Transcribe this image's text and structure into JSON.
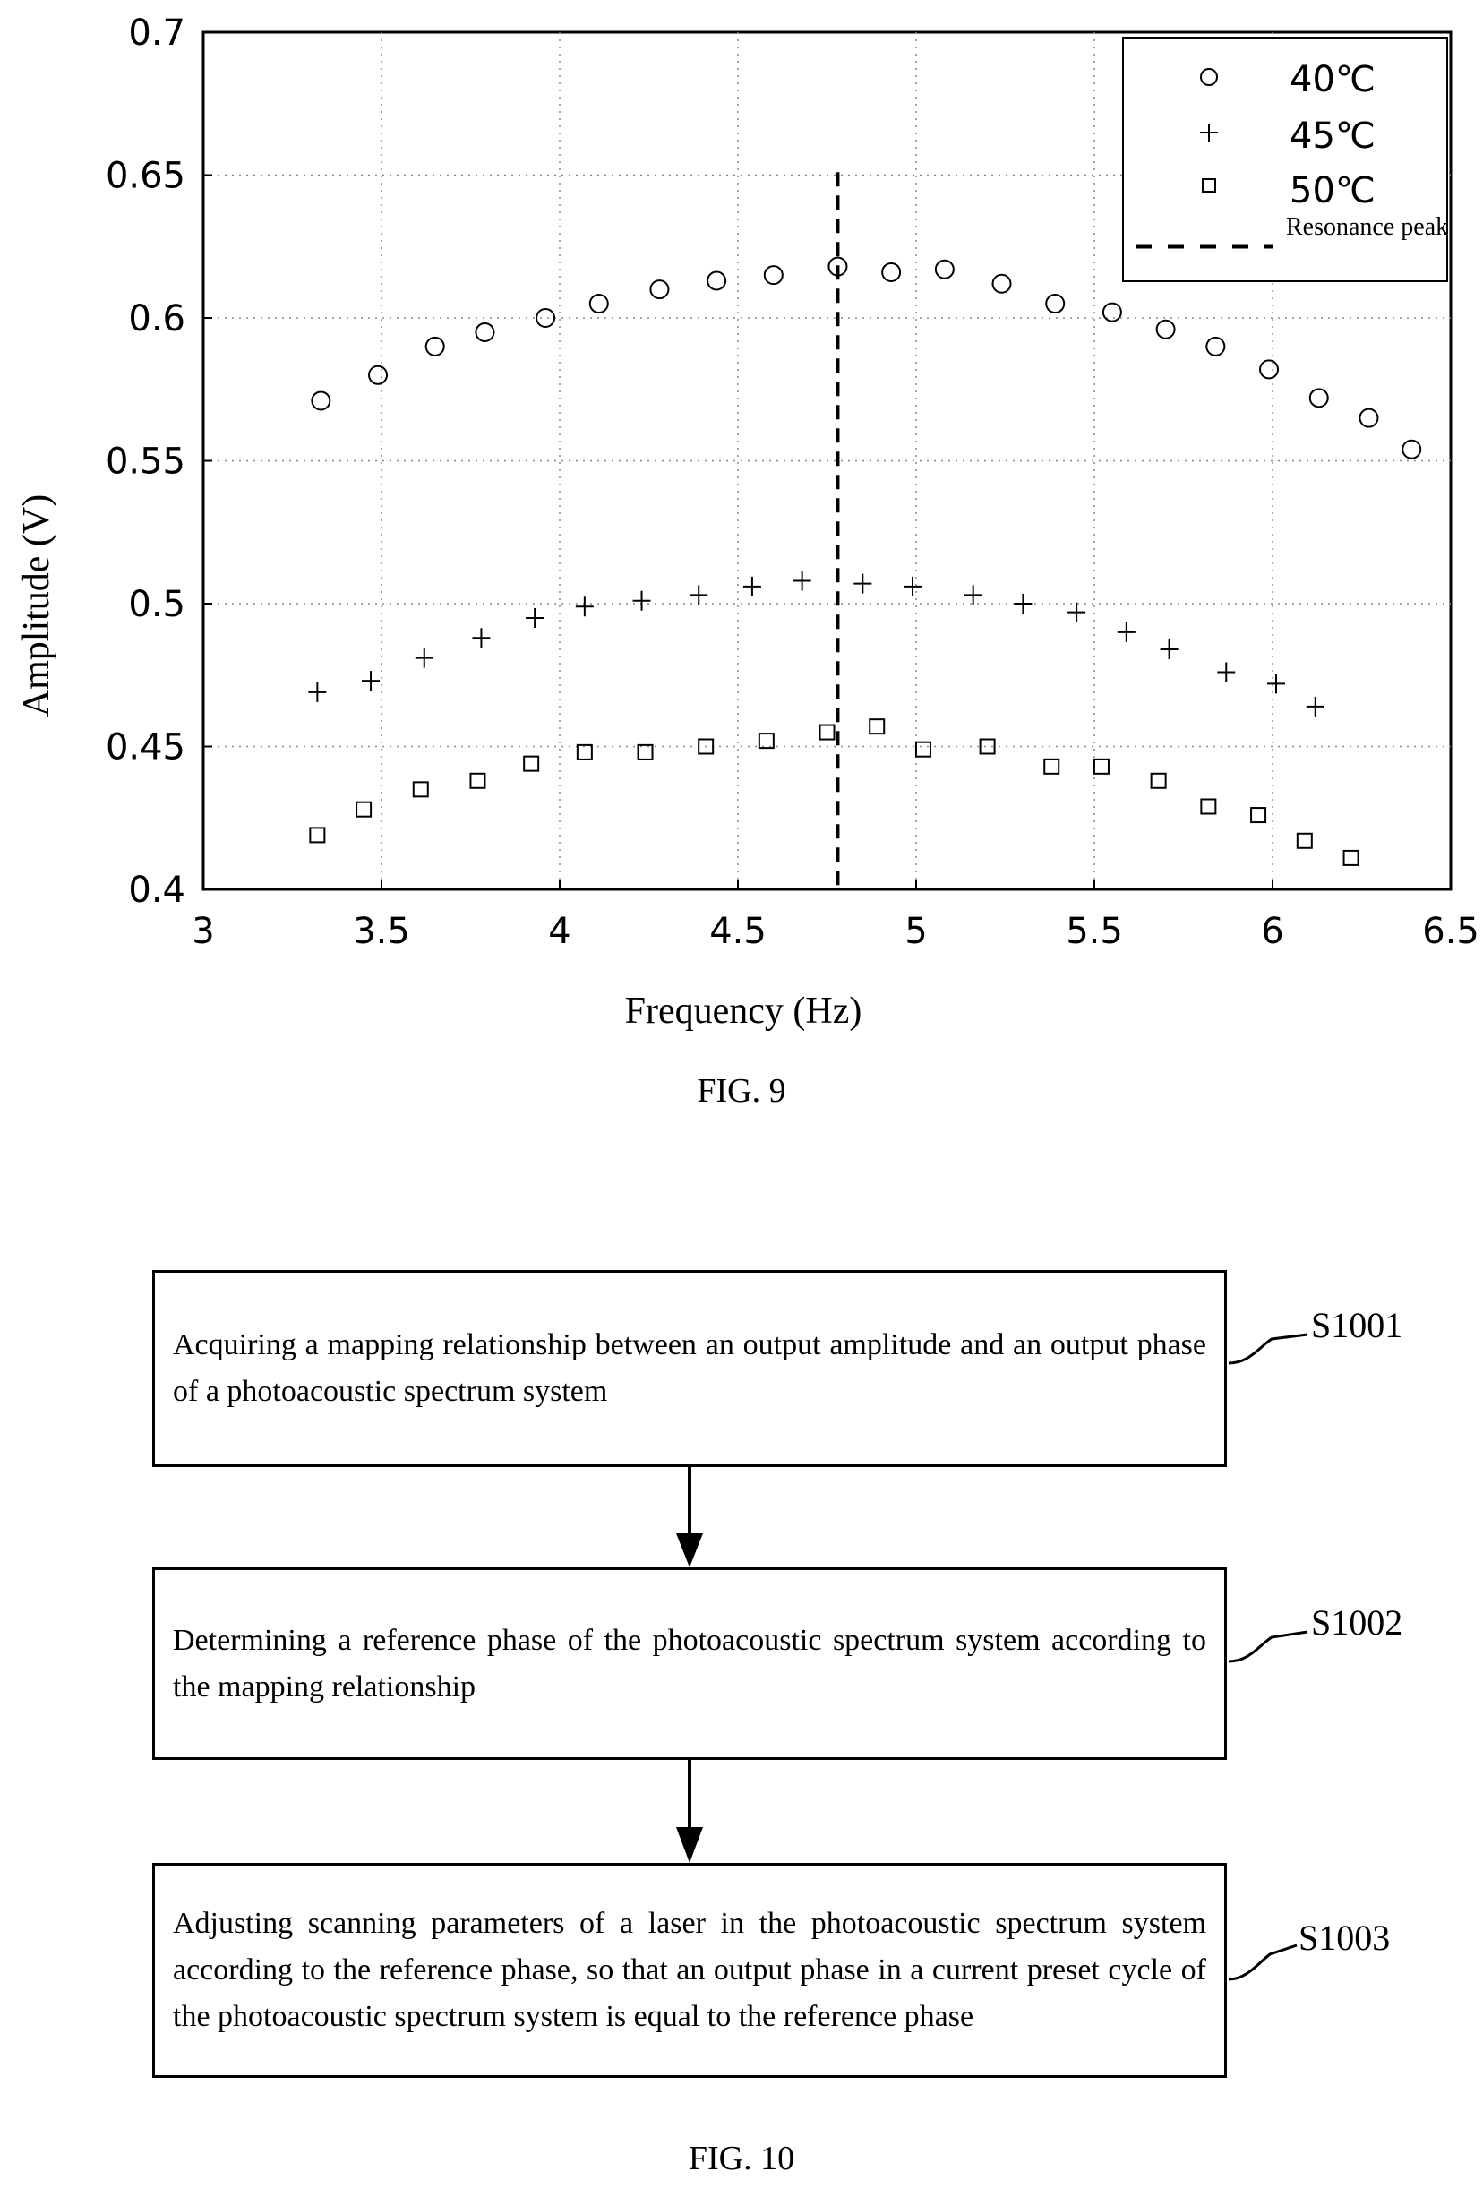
{
  "fig9": {
    "caption": "FIG. 9",
    "chart_data": {
      "type": "scatter",
      "xlabel": "Frequency (Hz)",
      "ylabel": "Amplitude (V)",
      "xlim": [
        3,
        6.5
      ],
      "ylim": [
        0.4,
        0.7
      ],
      "xticks": [
        "3",
        "3.5",
        "4",
        "4.5",
        "5",
        "5.5",
        "6",
        "6.5"
      ],
      "yticks": [
        "0.4",
        "0.45",
        "0.5",
        "0.55",
        "0.6",
        "0.65",
        "0.7"
      ],
      "grid": true,
      "legend_position": "top-right",
      "legend": [
        {
          "label": "40℃",
          "marker": "circle"
        },
        {
          "label": "45℃",
          "marker": "plus"
        },
        {
          "label": "50℃",
          "marker": "square"
        },
        {
          "label": "Resonance peak",
          "marker": "dashed-line"
        }
      ],
      "series": [
        {
          "name": "40℃",
          "marker": "circle",
          "x": [
            3.33,
            3.49,
            3.65,
            3.79,
            3.96,
            4.11,
            4.28,
            4.44,
            4.6,
            4.78,
            4.93,
            5.08,
            5.24,
            5.39,
            5.55,
            5.7,
            5.84,
            5.99,
            6.13,
            6.27,
            6.39
          ],
          "y": [
            0.571,
            0.58,
            0.59,
            0.595,
            0.6,
            0.605,
            0.61,
            0.613,
            0.615,
            0.618,
            0.616,
            0.617,
            0.612,
            0.605,
            0.602,
            0.596,
            0.59,
            0.582,
            0.572,
            0.565,
            0.554
          ]
        },
        {
          "name": "45℃",
          "marker": "plus",
          "x": [
            3.32,
            3.47,
            3.62,
            3.78,
            3.93,
            4.07,
            4.23,
            4.39,
            4.54,
            4.68,
            4.85,
            4.99,
            5.16,
            5.3,
            5.45,
            5.59,
            5.71,
            5.87,
            6.01,
            6.12
          ],
          "y": [
            0.469,
            0.473,
            0.481,
            0.488,
            0.495,
            0.499,
            0.501,
            0.503,
            0.506,
            0.508,
            0.507,
            0.506,
            0.503,
            0.5,
            0.497,
            0.49,
            0.484,
            0.476,
            0.472,
            0.464
          ]
        },
        {
          "name": "50℃",
          "marker": "square",
          "x": [
            3.32,
            3.45,
            3.61,
            3.77,
            3.92,
            4.07,
            4.24,
            4.41,
            4.58,
            4.75,
            4.89,
            5.02,
            5.2,
            5.38,
            5.52,
            5.68,
            5.82,
            5.96,
            6.09,
            6.22
          ],
          "y": [
            0.419,
            0.428,
            0.435,
            0.438,
            0.444,
            0.448,
            0.448,
            0.45,
            0.452,
            0.455,
            0.457,
            0.449,
            0.45,
            0.443,
            0.443,
            0.438,
            0.429,
            0.426,
            0.417,
            0.411
          ]
        }
      ],
      "reference_line": {
        "name": "Resonance peak",
        "x": 4.78,
        "y_range": [
          0.4,
          0.651
        ]
      }
    }
  },
  "fig10": {
    "caption": "FIG. 10",
    "steps": [
      {
        "label": "S1001",
        "text": "Acquiring a mapping relationship between an output amplitude and an output phase of a photoacoustic spectrum system"
      },
      {
        "label": "S1002",
        "text": "Determining a reference phase of the photoacoustic spectrum system according to the mapping relationship"
      },
      {
        "label": "S1003",
        "text": "Adjusting scanning parameters of a laser in the photoacoustic spectrum system according to the reference phase, so that an output phase in a current preset cycle of the photoacoustic spectrum system is equal to the reference phase"
      }
    ]
  }
}
